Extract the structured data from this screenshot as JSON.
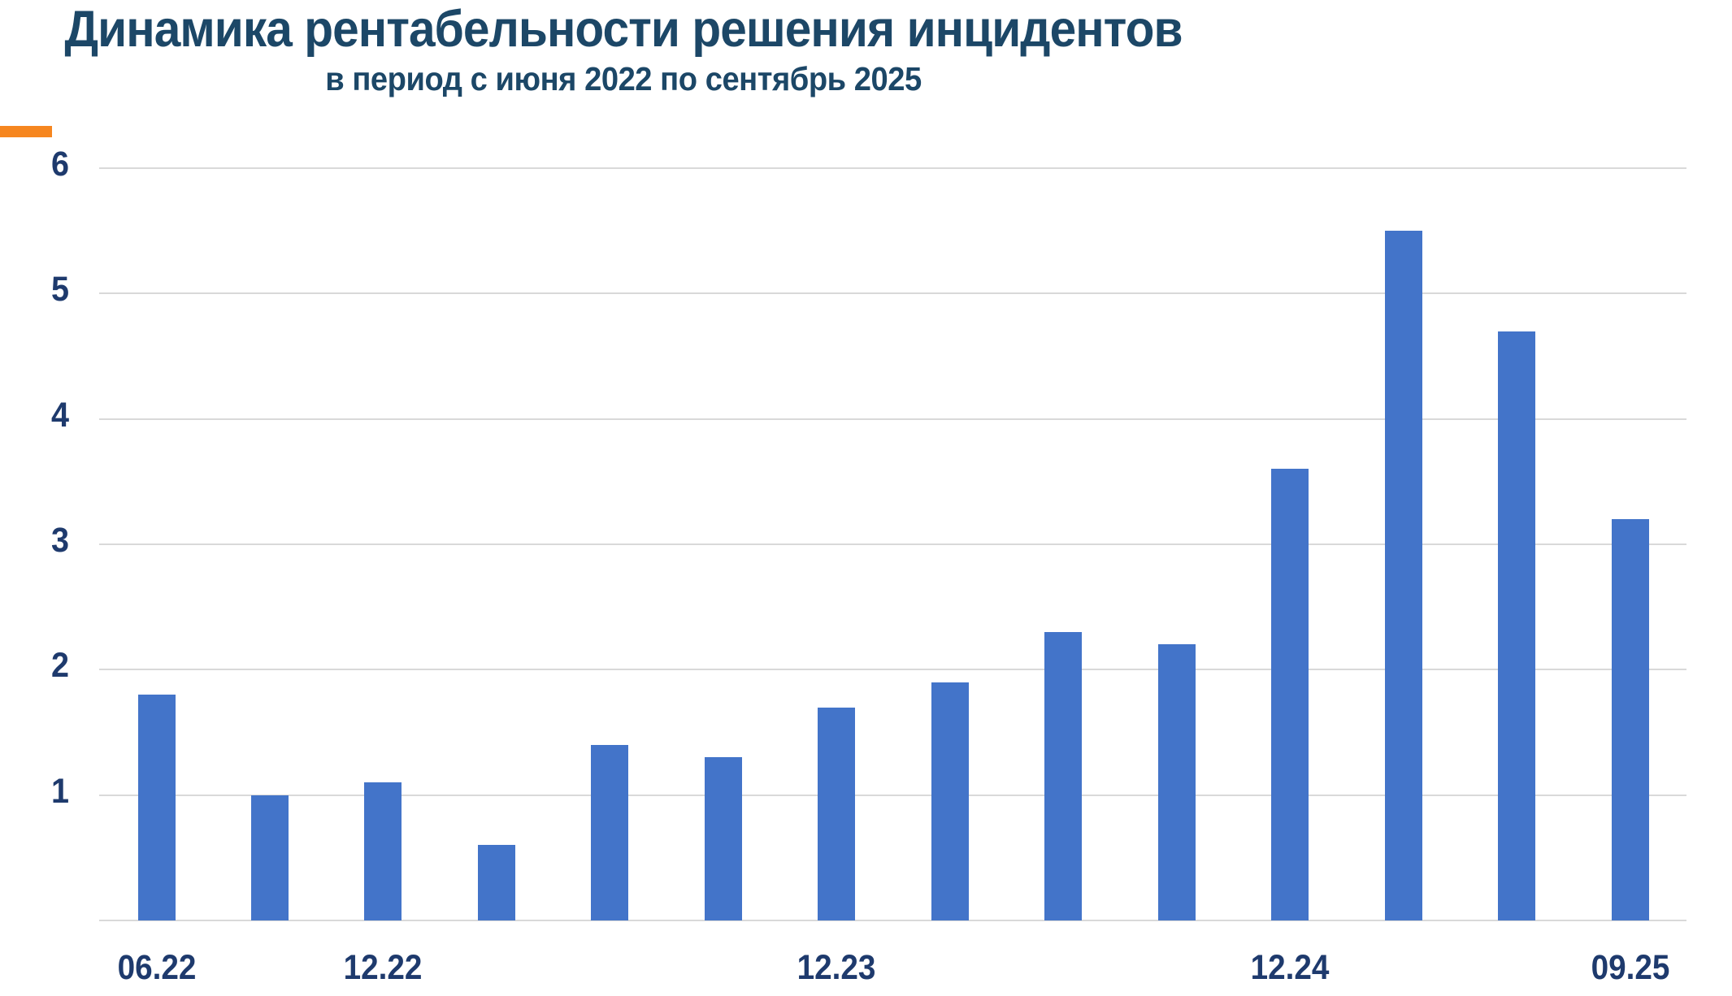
{
  "chart_data": {
    "type": "bar",
    "title": "Динамика рентабельности решения инцидентов",
    "subtitle": "в период с июня 2022 по сентябрь 2025",
    "values": [
      1.8,
      1.0,
      1.1,
      0.6,
      1.4,
      1.3,
      1.7,
      1.9,
      2.3,
      2.2,
      3.6,
      5.5,
      4.7,
      3.2
    ],
    "x_tick_labels": [
      {
        "bar_index": 0,
        "label": "06.22"
      },
      {
        "bar_index": 2,
        "label": "12.22"
      },
      {
        "bar_index": 6,
        "label": "12.23"
      },
      {
        "bar_index": 10,
        "label": "12.24"
      },
      {
        "bar_index": 13,
        "label": "09.25"
      }
    ],
    "y_ticks": [
      1,
      2,
      3,
      4,
      5,
      6
    ],
    "ylim": [
      0,
      6
    ],
    "grid": true,
    "legend": false,
    "bar_color": "#4374c9"
  },
  "colors": {
    "title": "#1c4767",
    "tick": "#1e3a6d",
    "bar": "#4374c9",
    "grid": "#d9d9d9",
    "accent_orange": "#f6861f",
    "background": "#ffffff"
  }
}
